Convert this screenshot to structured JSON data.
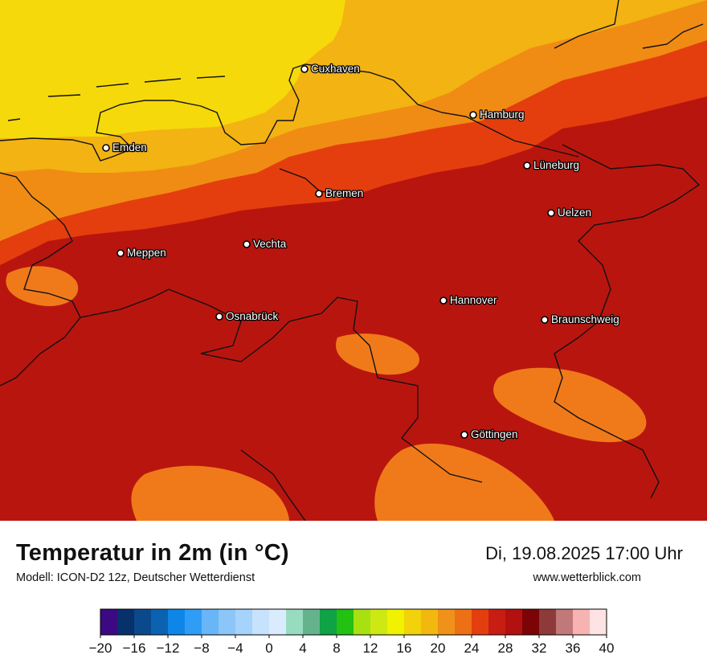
{
  "map": {
    "colors": {
      "sea": "#f5d90a",
      "coast_warm": "#f2b313",
      "orange": "#f08c14",
      "red_orange": "#e53e0e",
      "deep_red": "#b9150f",
      "hot_spot": "#f07a1a",
      "border": "#111111"
    },
    "cities": [
      {
        "name": "Cuxhaven"
      },
      {
        "name": "Hamburg"
      },
      {
        "name": "Emden"
      },
      {
        "name": "Lüneburg"
      },
      {
        "name": "Bremen"
      },
      {
        "name": "Uelzen"
      },
      {
        "name": "Vechta"
      },
      {
        "name": "Meppen"
      },
      {
        "name": "Hannover"
      },
      {
        "name": "Osnabrück"
      },
      {
        "name": "Braunschweig"
      },
      {
        "name": "Göttingen"
      }
    ]
  },
  "footer": {
    "title": "Temperatur in 2m (in °C)",
    "subtitle": "Modell: ICON-D2 12z, Deutscher Wetterdienst",
    "datetime": "Di, 19.08.2025 17:00 Uhr",
    "website": "www.wetterblick.com"
  },
  "legend": {
    "colors": [
      "#3b0a82",
      "#08306b",
      "#0a4a8c",
      "#0b62b0",
      "#0d86e8",
      "#2f9cf5",
      "#68b6f7",
      "#8cc5f8",
      "#a6d3fb",
      "#c7e2fc",
      "#daebfd",
      "#98dcc0",
      "#65b38c",
      "#0fa246",
      "#22c112",
      "#a8e012",
      "#cde812",
      "#f0f200",
      "#f2d20a",
      "#f2b80f",
      "#f0911a",
      "#ee7014",
      "#e53e0e",
      "#c81d13",
      "#b2110f",
      "#7c0306",
      "#8e3a3a",
      "#c07878",
      "#f7b2b2",
      "#fde3e3"
    ],
    "ticks": [
      "−20",
      "−16",
      "−12",
      "−8",
      "−4",
      "0",
      "4",
      "8",
      "12",
      "16",
      "20",
      "24",
      "28",
      "32",
      "36",
      "40"
    ]
  }
}
